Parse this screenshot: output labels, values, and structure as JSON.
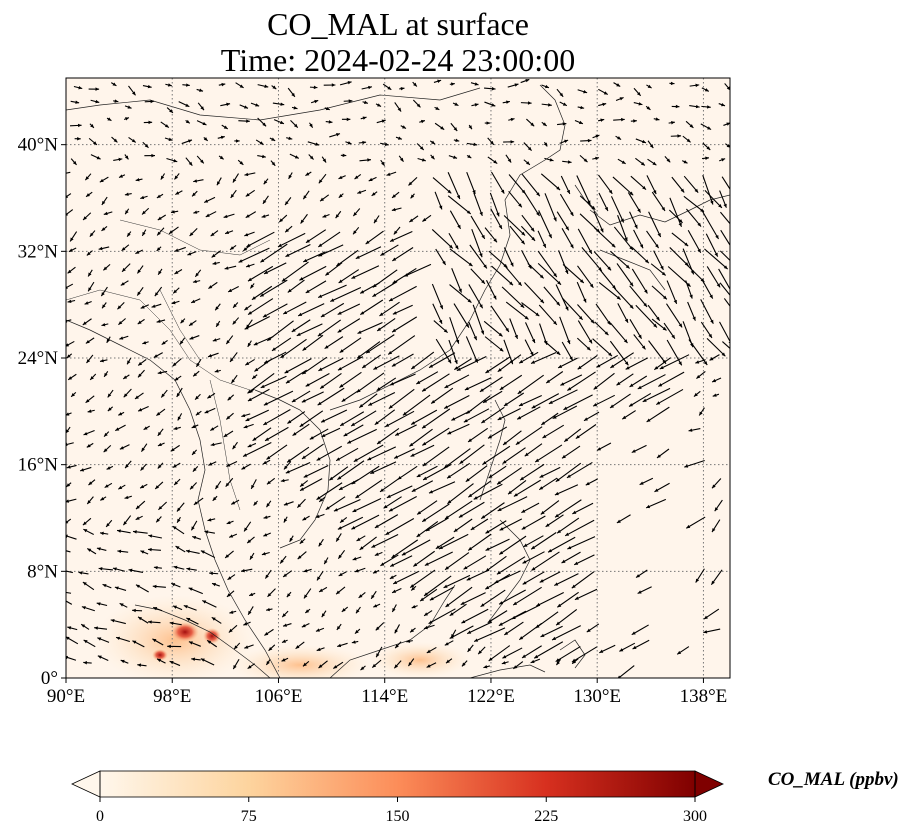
{
  "title": {
    "line1": "CO_MAL at surface",
    "line2": "Time: 2024-02-24 23:00:00"
  },
  "map": {
    "lon_range": [
      90,
      140
    ],
    "lat_range": [
      0,
      45
    ],
    "x_ticks": [
      {
        "value": 90,
        "label": "90°E"
      },
      {
        "value": 98,
        "label": "98°E"
      },
      {
        "value": 106,
        "label": "106°E"
      },
      {
        "value": 114,
        "label": "114°E"
      },
      {
        "value": 122,
        "label": "122°E"
      },
      {
        "value": 130,
        "label": "130°E"
      },
      {
        "value": 138,
        "label": "138°E"
      }
    ],
    "y_ticks": [
      {
        "value": 0,
        "label": "0°"
      },
      {
        "value": 8,
        "label": "8°N"
      },
      {
        "value": 16,
        "label": "16°N"
      },
      {
        "value": 24,
        "label": "24°N"
      },
      {
        "value": 32,
        "label": "32°N"
      },
      {
        "value": 40,
        "label": "40°N"
      }
    ],
    "gridlines": "dotted",
    "field_color_low": "#fff5eb",
    "wind_vectors": "quiver"
  },
  "colorbar": {
    "label": "CO_MAL (ppbv)",
    "min": 0,
    "max": 300,
    "extend": "both",
    "colormap": "OrRd",
    "ticks": [
      "0",
      "75",
      "150",
      "225",
      "300"
    ]
  }
}
